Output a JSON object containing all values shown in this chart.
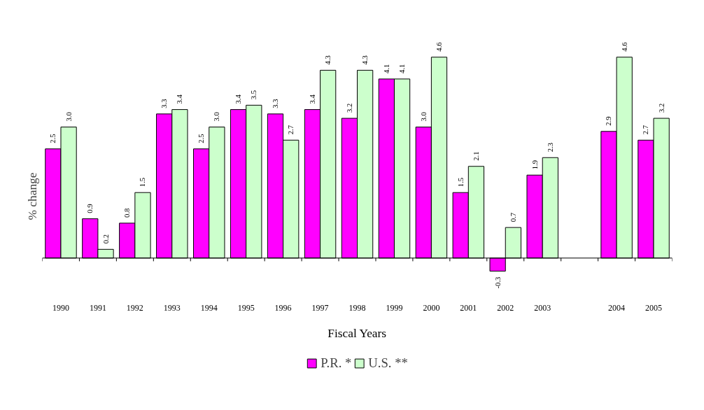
{
  "chart_data": {
    "type": "bar",
    "xlabel": "Fiscal Years",
    "ylabel": "% change",
    "categories": [
      "1990",
      "1991",
      "1992",
      "1993",
      "1994",
      "1995",
      "1996",
      "1997",
      "1998",
      "1999",
      "2000",
      "2001",
      "2002",
      "2003",
      null,
      "2004",
      "2005"
    ],
    "series": [
      {
        "name": "P.R. *",
        "color": "#ff00ff",
        "values": [
          2.5,
          0.9,
          0.8,
          3.3,
          2.5,
          3.4,
          3.3,
          3.4,
          3.2,
          4.1,
          3.0,
          1.5,
          -0.3,
          1.9,
          null,
          2.9,
          2.7
        ],
        "value_labels": [
          "2.5",
          "0.9",
          "0.8",
          "3.3",
          "2.5",
          "3.4",
          "3.3",
          "3.4",
          "3.2",
          "4.1",
          "3.0",
          "1.5",
          "-0.3",
          "1.9",
          null,
          "2.9",
          "2.7"
        ]
      },
      {
        "name": "U.S. **",
        "color": "#ccffcc",
        "values": [
          3.0,
          0.2,
          1.5,
          3.4,
          3.0,
          3.5,
          2.7,
          4.3,
          4.3,
          4.1,
          4.6,
          2.1,
          0.7,
          2.3,
          null,
          4.6,
          3.2
        ],
        "value_labels": [
          "3.0",
          "0.2",
          "1.5",
          "3.4",
          "3.0",
          "3.5",
          "2.7",
          "4.3",
          "4.3",
          "4.1",
          "4.6",
          "2.1",
          "0.7",
          "2.3",
          null,
          "4.6",
          "3.2"
        ]
      }
    ],
    "grid": false,
    "legend": "bottom"
  }
}
